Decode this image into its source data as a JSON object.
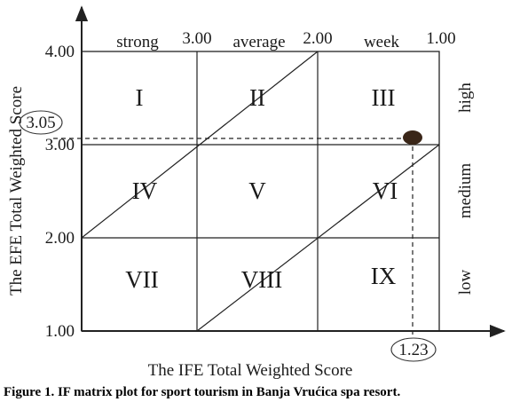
{
  "figure": {
    "caption": "Figure 1. IF matrix plot for sport tourism in Banja Vrućica spa resort.",
    "x_axis_title": "The IFE Total Weighted Score",
    "y_axis_title": "The EFE Total Weighted Score",
    "x_ticks": [
      "3.00",
      "2.00",
      "1.00"
    ],
    "y_ticks": [
      "4.00",
      "3.00",
      "2.00",
      "1.00"
    ],
    "x_bands": [
      "strong",
      "average",
      "week"
    ],
    "y_bands": [
      "high",
      "medium",
      "low"
    ],
    "cells": [
      "I",
      "II",
      "III",
      "IV",
      "V",
      "VI",
      "VII",
      "VIII",
      "IX"
    ],
    "point": {
      "ife_score": "1.23",
      "efe_score": "3.05",
      "marker_color": "#3a2618"
    },
    "colors": {
      "line": "#222222",
      "point": "#3a2618"
    }
  }
}
